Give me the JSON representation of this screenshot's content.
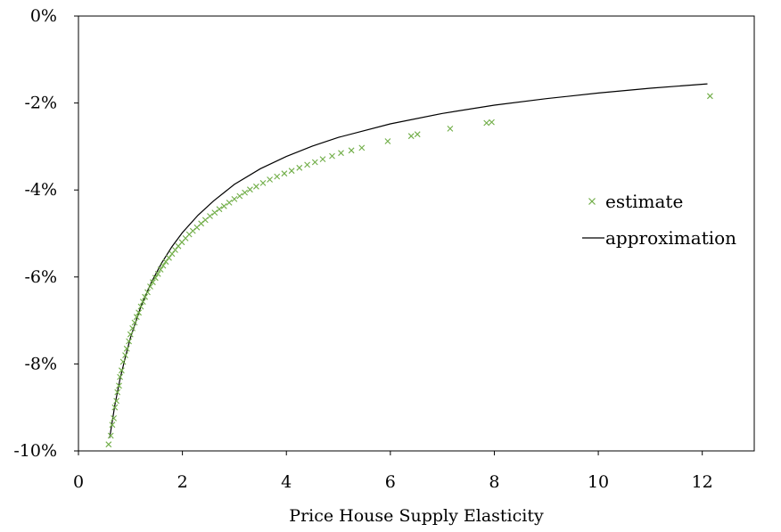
{
  "chart_data": {
    "type": "scatter",
    "title": "",
    "xlabel": "Price House Supply Elasticity",
    "ylabel": "",
    "xlim": [
      0,
      13
    ],
    "ylim": [
      -0.1,
      0.0
    ],
    "x_ticks": [
      {
        "value": 0,
        "label": "0"
      },
      {
        "value": 2,
        "label": "2"
      },
      {
        "value": 4,
        "label": "4"
      },
      {
        "value": 6,
        "label": "6"
      },
      {
        "value": 8,
        "label": "8"
      },
      {
        "value": 10,
        "label": "10"
      },
      {
        "value": 12,
        "label": "12"
      }
    ],
    "y_ticks": [
      {
        "value": 0.0,
        "label": "0%"
      },
      {
        "value": -0.02,
        "label": "-2%"
      },
      {
        "value": -0.04,
        "label": "-4%"
      },
      {
        "value": -0.06,
        "label": "-6%"
      },
      {
        "value": -0.08,
        "label": "-8%"
      },
      {
        "value": -0.1,
        "label": "-10%"
      }
    ],
    "grid": false,
    "legend_position": "right",
    "colors": {
      "estimate": "#70ad47",
      "approximation": "#000000"
    },
    "series": [
      {
        "name": "estimate",
        "style": "markers-x",
        "x": [
          0.58,
          0.62,
          0.65,
          0.68,
          0.7,
          0.73,
          0.75,
          0.78,
          0.8,
          0.83,
          0.86,
          0.9,
          0.93,
          0.97,
          1.0,
          1.04,
          1.08,
          1.12,
          1.16,
          1.2,
          1.24,
          1.28,
          1.33,
          1.38,
          1.43,
          1.48,
          1.53,
          1.58,
          1.63,
          1.68,
          1.74,
          1.8,
          1.86,
          1.92,
          1.99,
          2.06,
          2.13,
          2.2,
          2.28,
          2.36,
          2.44,
          2.53,
          2.62,
          2.71,
          2.8,
          2.9,
          3.0,
          3.1,
          3.2,
          3.3,
          3.42,
          3.55,
          3.68,
          3.82,
          3.96,
          4.1,
          4.25,
          4.4,
          4.55,
          4.7,
          4.88,
          5.05,
          5.25,
          5.45,
          5.95,
          6.4,
          6.52,
          7.15,
          7.85,
          7.95,
          12.15
        ],
        "y": [
          -0.0985,
          -0.0965,
          -0.094,
          -0.0925,
          -0.09,
          -0.0885,
          -0.0865,
          -0.085,
          -0.083,
          -0.0815,
          -0.0795,
          -0.078,
          -0.0765,
          -0.0748,
          -0.0732,
          -0.0718,
          -0.0705,
          -0.0692,
          -0.0682,
          -0.0668,
          -0.0657,
          -0.0646,
          -0.0635,
          -0.0622,
          -0.0612,
          -0.0602,
          -0.0593,
          -0.0583,
          -0.0574,
          -0.0565,
          -0.0556,
          -0.0547,
          -0.0538,
          -0.0529,
          -0.052,
          -0.0511,
          -0.0502,
          -0.0494,
          -0.0486,
          -0.0477,
          -0.0469,
          -0.046,
          -0.0452,
          -0.0444,
          -0.0437,
          -0.0429,
          -0.0421,
          -0.0414,
          -0.0406,
          -0.0399,
          -0.0392,
          -0.0384,
          -0.0376,
          -0.0369,
          -0.0362,
          -0.0356,
          -0.0349,
          -0.0342,
          -0.0336,
          -0.0329,
          -0.0322,
          -0.0315,
          -0.0309,
          -0.0303,
          -0.0288,
          -0.0276,
          -0.0272,
          -0.0259,
          -0.0246,
          -0.0244,
          -0.0184
        ]
      },
      {
        "name": "approximation",
        "style": "line",
        "x": [
          0.6,
          0.7,
          0.8,
          0.9,
          1.0,
          1.2,
          1.4,
          1.6,
          1.8,
          2.0,
          2.3,
          2.6,
          3.0,
          3.5,
          4.0,
          4.5,
          5.0,
          6.0,
          7.0,
          8.0,
          9.0,
          10.0,
          11.0,
          12.1
        ],
        "y": [
          -0.097,
          -0.0895,
          -0.0835,
          -0.0785,
          -0.074,
          -0.0668,
          -0.0613,
          -0.0568,
          -0.053,
          -0.0498,
          -0.0458,
          -0.0425,
          -0.0387,
          -0.0351,
          -0.0323,
          -0.0299,
          -0.0279,
          -0.0248,
          -0.0224,
          -0.0205,
          -0.019,
          -0.0177,
          -0.0166,
          -0.0156
        ]
      }
    ]
  }
}
